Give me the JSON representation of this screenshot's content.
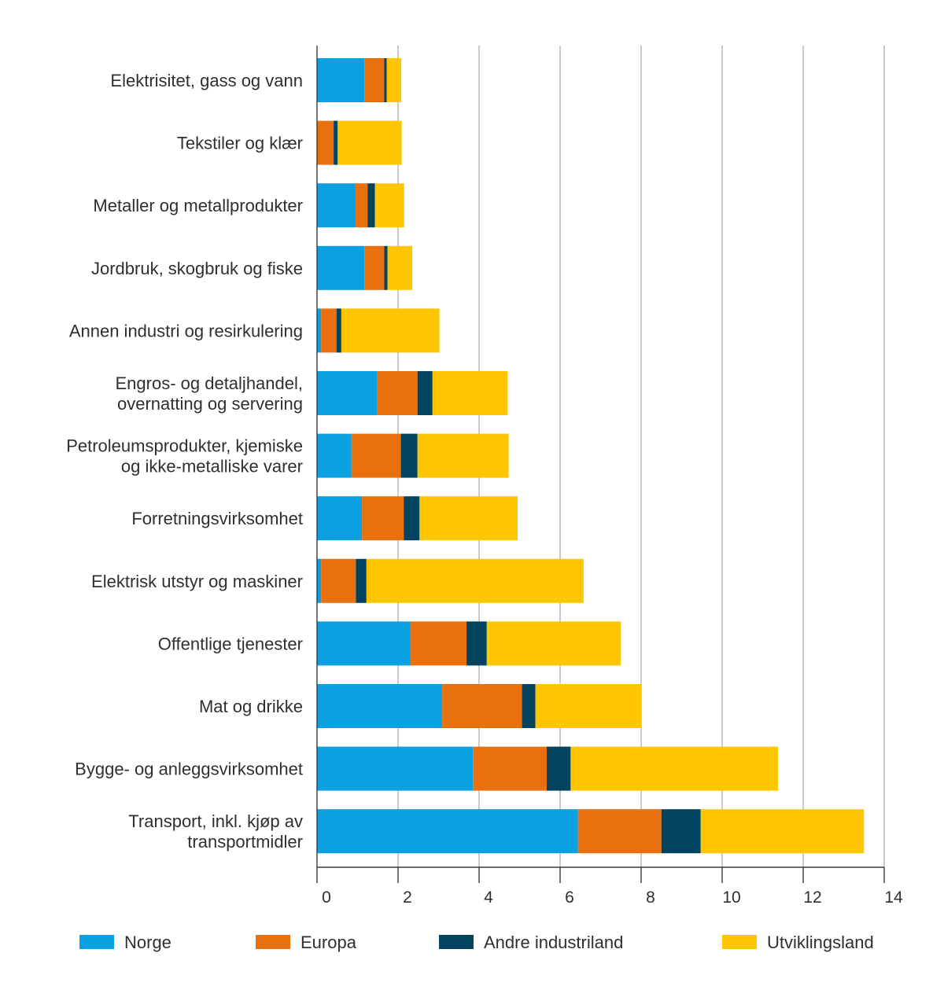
{
  "chart_data": {
    "type": "bar",
    "orientation": "horizontal",
    "stacked": true,
    "title": "",
    "xlabel": "",
    "ylabel": "",
    "xlim": [
      0,
      14
    ],
    "xticks": [
      0,
      2,
      4,
      6,
      8,
      10,
      12,
      14
    ],
    "grid": "vertical",
    "legend_position": "bottom",
    "categories": [
      [
        "Elektrisitet, gass og vann"
      ],
      [
        "Tekstiler og klær"
      ],
      [
        "Metaller og metallprodukter"
      ],
      [
        "Jordbruk, skogbruk og fiske"
      ],
      [
        "Annen industri og resirkulering"
      ],
      [
        "Engros- og detaljhandel,",
        "overnatting og servering"
      ],
      [
        "Petroleumsprodukter, kjemiske",
        "og ikke-metalliske varer"
      ],
      [
        "Forretningsvirksomhet"
      ],
      [
        "Elektrisk utstyr og maskiner"
      ],
      [
        "Offentlige tjenester"
      ],
      [
        "Mat og drikke"
      ],
      [
        "Bygge- og anleggsvirksomhet"
      ],
      [
        "Transport, inkl. kjøp av",
        "transportmidler"
      ]
    ],
    "series": [
      {
        "name": "Norge",
        "color": "#0aa0e1",
        "values": [
          1.17,
          0.0,
          0.95,
          1.17,
          0.1,
          1.49,
          0.85,
          1.11,
          0.1,
          2.31,
          3.09,
          3.85,
          6.44
        ]
      },
      {
        "name": "Europa",
        "color": "#e8700e",
        "values": [
          0.49,
          0.41,
          0.3,
          0.49,
          0.38,
          0.99,
          1.22,
          1.03,
          0.86,
          1.38,
          1.97,
          1.82,
          2.06
        ]
      },
      {
        "name": "Andre industriland",
        "color": "#024460",
        "values": [
          0.06,
          0.1,
          0.18,
          0.08,
          0.12,
          0.37,
          0.41,
          0.39,
          0.26,
          0.5,
          0.33,
          0.59,
          0.97
        ]
      },
      {
        "name": "Utviklingsland",
        "color": "#fdc600",
        "values": [
          0.36,
          1.58,
          0.72,
          0.61,
          2.42,
          1.85,
          2.25,
          2.42,
          5.36,
          3.31,
          2.61,
          5.12,
          4.03
        ]
      }
    ]
  }
}
